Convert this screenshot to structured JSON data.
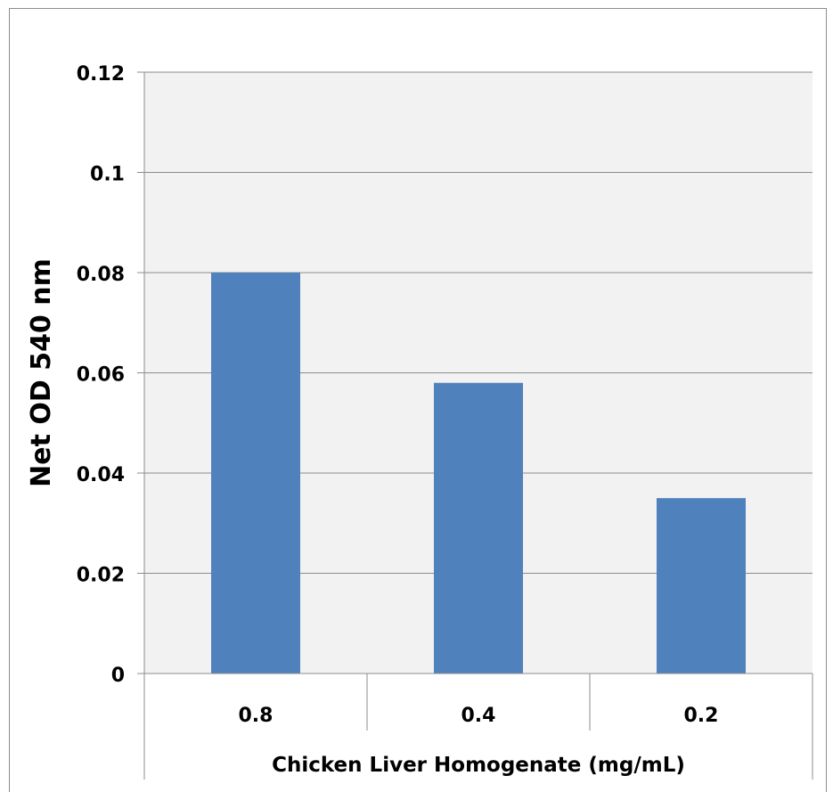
{
  "chart_data": {
    "type": "bar",
    "title": "",
    "xlabel": "Chicken Liver Homogenate (mg/mL)",
    "ylabel": "Net OD 540 nm",
    "categories": [
      "0.8",
      "0.4",
      "0.2"
    ],
    "series": [
      {
        "values": [
          0.08,
          0.058,
          0.035
        ]
      }
    ],
    "ylim": [
      0,
      0.12
    ],
    "yticks": [
      "0",
      "0.02",
      "0.04",
      "0.06",
      "0.08",
      "0.1",
      "0.12"
    ],
    "grid": true,
    "legend": "none",
    "colors": {
      "bar": "#4f81bd",
      "plot_background": "#f2f2f2",
      "gridline": "#8c8c8c"
    }
  }
}
